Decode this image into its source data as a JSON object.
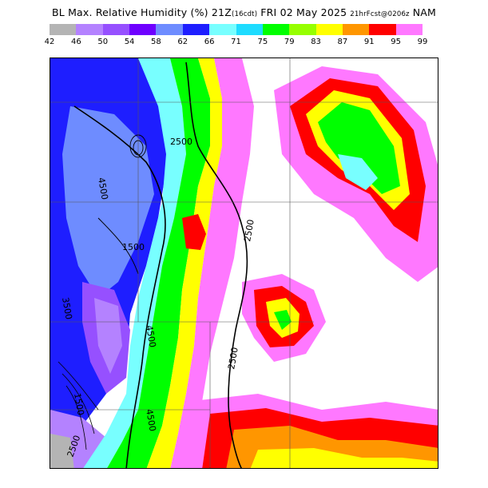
{
  "title": {
    "main": "BL Max. Relative Humidity (%) 21Z",
    "local": "(16cdt)",
    "date": "FRI 02 May 2025",
    "forecast": "21hrFcst@0206z",
    "model": "NAM"
  },
  "colorbar": {
    "levels": [
      "42",
      "46",
      "50",
      "54",
      "58",
      "62",
      "66",
      "71",
      "75",
      "79",
      "83",
      "87",
      "91",
      "95",
      "99"
    ],
    "colors": [
      "#b4b4b4",
      "#b482ff",
      "#9650ff",
      "#6e00ff",
      "#6e8cff",
      "#1e1eff",
      "#78ffff",
      "#1edcff",
      "#00ff00",
      "#96ff00",
      "#ffff00",
      "#ff9600",
      "#ff0000",
      "#ff78ff",
      "#ffffff"
    ]
  },
  "map": {
    "contour_labels": [
      "2500",
      "4500",
      "1500",
      "2500",
      "4500",
      "2500",
      "4500",
      "2500",
      "3500",
      "1500"
    ]
  }
}
